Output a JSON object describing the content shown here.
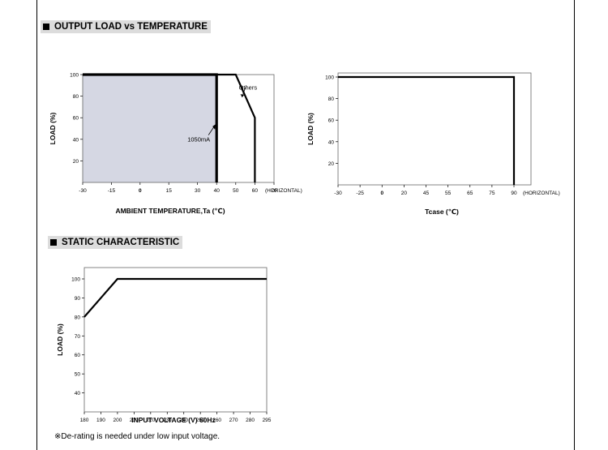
{
  "sections": {
    "load_vs_temp": "OUTPUT LOAD vs TEMPERATURE",
    "static": "STATIC CHARACTERISTIC"
  },
  "note": "※De-rating is needed under low input voltage.",
  "colors": {
    "shade": "#d5d7e3",
    "line": "#000000"
  },
  "chart_data": [
    {
      "type": "line",
      "ylabel": "LOAD (%)",
      "xlabel": "AMBIENT TEMPERATURE,Ta (℃)",
      "x_unit_label": "(HORIZONTAL)",
      "xlim": [
        -30,
        70
      ],
      "ylim": [
        0,
        100
      ],
      "xticks": [
        -30,
        -15,
        0,
        15,
        30,
        40,
        50,
        60,
        70
      ],
      "yticks": [
        20,
        40,
        60,
        80,
        100
      ],
      "shaded_region": {
        "x": [
          -30,
          40
        ],
        "y": [
          0,
          100
        ]
      },
      "series": [
        {
          "name": "1050mA",
          "x": [
            -30,
            40,
            40
          ],
          "y": [
            100,
            100,
            0
          ]
        },
        {
          "name": "Others",
          "x": [
            40,
            50,
            60,
            60
          ],
          "y": [
            100,
            100,
            60,
            0
          ]
        }
      ],
      "annotations": [
        {
          "text": "Others",
          "x": 55,
          "y": 80
        },
        {
          "text": "1050mA",
          "x": 40,
          "y": 52
        }
      ]
    },
    {
      "type": "line",
      "ylabel": "LOAD (%)",
      "xlabel": "Tcase (℃)",
      "x_unit_label": "(HORIZONTAL)",
      "xlim": [
        -30,
        90
      ],
      "ylim": [
        0,
        100
      ],
      "xticks": [
        -30,
        -25,
        0,
        20,
        45,
        55,
        65,
        75,
        90
      ],
      "yticks": [
        20,
        40,
        60,
        80,
        100
      ],
      "series": [
        {
          "x": [
            -30,
            90,
            90
          ],
          "y": [
            100,
            100,
            0
          ]
        }
      ]
    },
    {
      "type": "line",
      "ylabel": "LOAD (%)",
      "xlabel": "INPUT VOLTAGE (V) 60Hz",
      "xlim": [
        180,
        295
      ],
      "ylim": [
        30,
        100
      ],
      "xticks": [
        180,
        190,
        200,
        210,
        220,
        230,
        240,
        250,
        260,
        270,
        280,
        295
      ],
      "yticks": [
        40,
        50,
        60,
        70,
        80,
        90,
        100
      ],
      "series": [
        {
          "x": [
            180,
            200,
            295
          ],
          "y": [
            80,
            100,
            100
          ]
        }
      ]
    }
  ]
}
